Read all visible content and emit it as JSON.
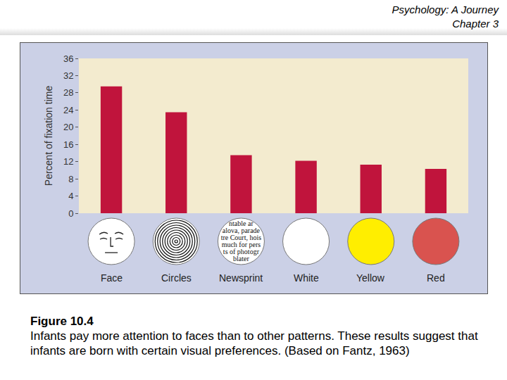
{
  "header": {
    "title": "Psychology: A Journey",
    "subtitle": "Chapter 3"
  },
  "chart_data": {
    "type": "bar",
    "categories": [
      "Face",
      "Circles",
      "Newsprint",
      "White",
      "Yellow",
      "Red"
    ],
    "values": [
      29.5,
      23.5,
      13.5,
      12.2,
      11.3,
      10.3
    ],
    "color": "#c0143c",
    "y_label": "Percent of fixation time",
    "ylim": [
      0,
      36
    ],
    "yticks": [
      0,
      4,
      8,
      12,
      16,
      20,
      24,
      28,
      32,
      36
    ],
    "grid": false
  },
  "stimuli": {
    "newsprint_text": [
      "ntable ar",
      "alova, parade",
      "tre Court, hois",
      "much for pers",
      "ts of photogr",
      "blater"
    ]
  },
  "caption": {
    "label": "Figure 10.4",
    "text": "Infants pay more attention to faces than to other patterns. These results suggest that infants are born with certain visual preferences. (Based on Fantz, 1963)"
  }
}
